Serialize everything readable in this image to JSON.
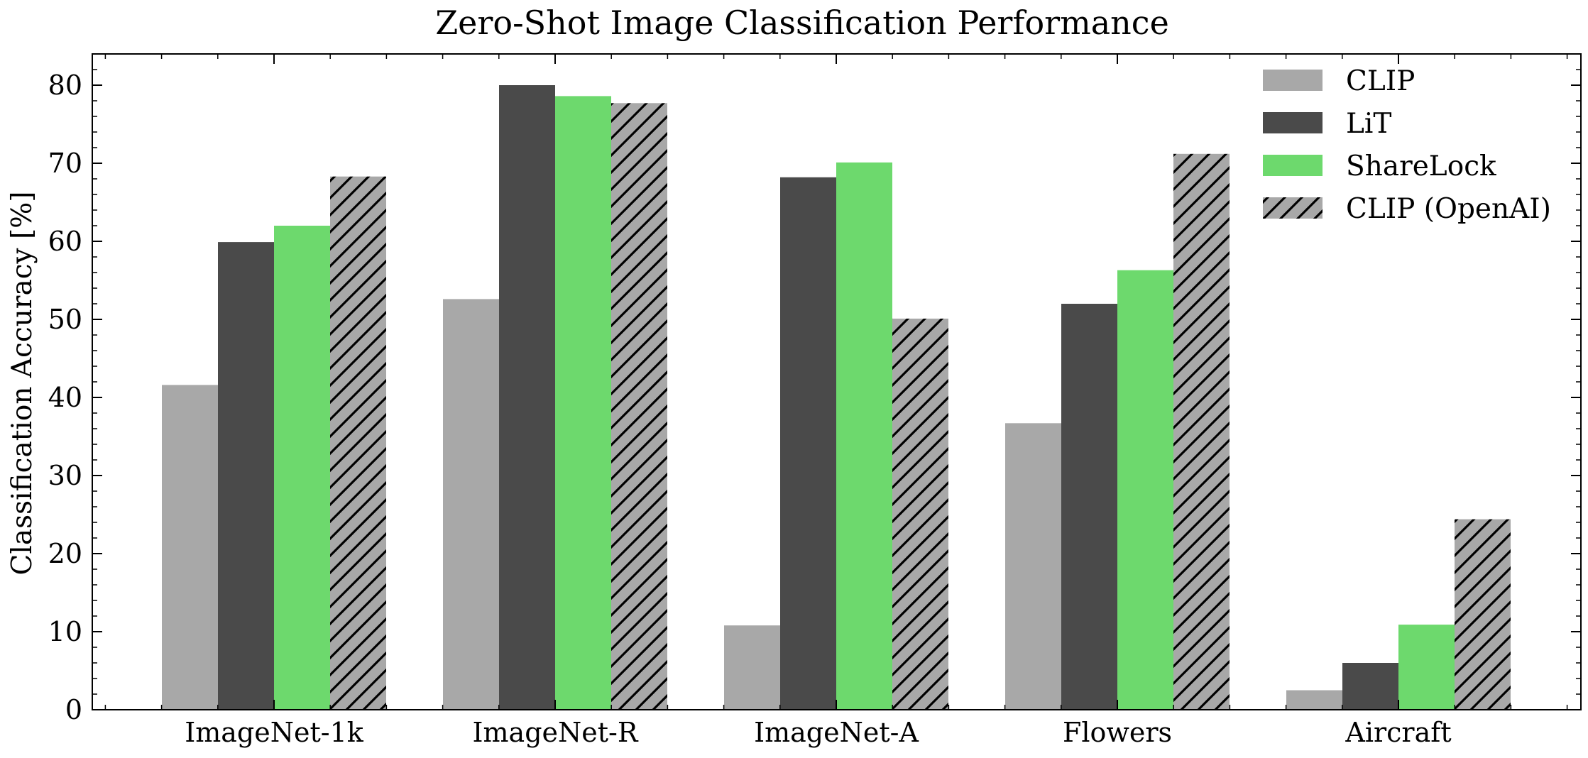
{
  "chart_data": {
    "type": "bar",
    "title": "Zero-Shot Image Classification Performance",
    "xlabel": "",
    "ylabel": "Classification Accuracy [%]",
    "ylim": [
      0,
      84
    ],
    "yticks": [
      0,
      10,
      20,
      30,
      40,
      50,
      60,
      70,
      80
    ],
    "grid": false,
    "legend_position": "top-right",
    "categories": [
      "ImageNet-1k",
      "ImageNet-R",
      "ImageNet-A",
      "Flowers",
      "Aircraft"
    ],
    "series": [
      {
        "name": "CLIP",
        "color": "#a8a8a8",
        "hatch": false,
        "values": [
          41.6,
          52.6,
          10.8,
          36.7,
          2.5
        ]
      },
      {
        "name": "LiT",
        "color": "#4a4a4a",
        "hatch": false,
        "values": [
          59.9,
          80.0,
          68.2,
          52.0,
          6.0
        ]
      },
      {
        "name": "ShareLock",
        "color": "#6dd96d",
        "hatch": false,
        "values": [
          62.0,
          78.6,
          70.1,
          56.3,
          10.9
        ]
      },
      {
        "name": "CLIP (OpenAI)",
        "color": "#a8a8a8",
        "hatch": true,
        "values": [
          68.3,
          77.7,
          50.1,
          71.2,
          24.4
        ]
      }
    ]
  }
}
